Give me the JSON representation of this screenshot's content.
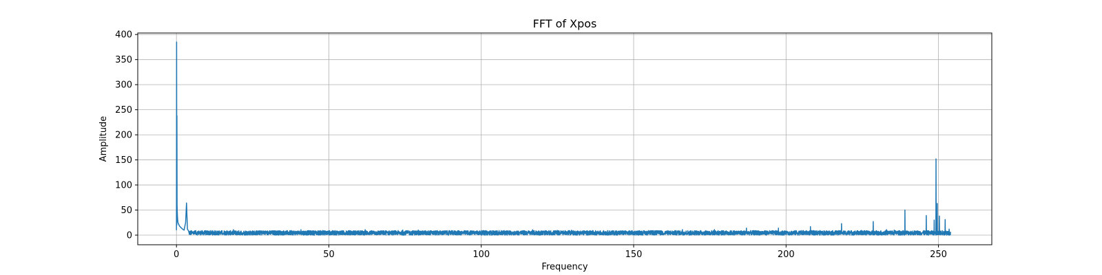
{
  "chart_data": {
    "type": "line",
    "title": "FFT of Xpos",
    "xlabel": "Frequency",
    "ylabel": "Amplitude",
    "xlim": [
      -12.7,
      267.5
    ],
    "ylim": [
      -19.2,
      403
    ],
    "xticks": [
      0,
      50,
      100,
      150,
      200,
      250
    ],
    "yticks": [
      0,
      50,
      100,
      150,
      200,
      250,
      300,
      350,
      400
    ],
    "grid": true,
    "line_color": "#1f77b4",
    "freq_range": [
      0,
      254
    ],
    "noise_floor": 4.5,
    "noise_band": [
      0,
      9
    ],
    "low_freq_series": {
      "x": [
        0,
        0.05,
        0.1,
        0.15,
        0.2,
        0.25,
        0.3,
        0.4,
        0.5,
        0.7,
        1.0,
        1.5,
        2.0,
        2.5,
        3.0,
        3.3,
        3.6,
        4.0
      ],
      "y": [
        10,
        385,
        20,
        238,
        60,
        48,
        40,
        30,
        25,
        22,
        18,
        15,
        12,
        10,
        25,
        64,
        12,
        8
      ]
    },
    "peaks": [
      {
        "x": 48.0,
        "y": 9
      },
      {
        "x": 70.5,
        "y": 8
      },
      {
        "x": 83.5,
        "y": 8
      },
      {
        "x": 145.0,
        "y": 8
      },
      {
        "x": 166.0,
        "y": 11
      },
      {
        "x": 176.5,
        "y": 11
      },
      {
        "x": 187.0,
        "y": 14
      },
      {
        "x": 197.5,
        "y": 14
      },
      {
        "x": 208.0,
        "y": 17
      },
      {
        "x": 218.2,
        "y": 23
      },
      {
        "x": 228.6,
        "y": 27
      },
      {
        "x": 235.5,
        "y": 10
      },
      {
        "x": 239.0,
        "y": 50
      },
      {
        "x": 246.0,
        "y": 39
      },
      {
        "x": 248.6,
        "y": 30
      },
      {
        "x": 249.2,
        "y": 152
      },
      {
        "x": 249.6,
        "y": 63
      },
      {
        "x": 250.3,
        "y": 38
      },
      {
        "x": 252.2,
        "y": 31
      },
      {
        "x": 253.5,
        "y": 12
      }
    ]
  }
}
